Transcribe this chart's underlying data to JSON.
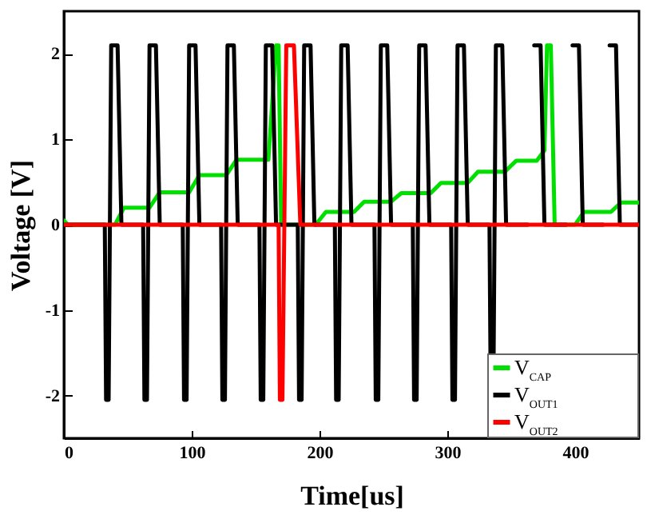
{
  "chart_data": {
    "type": "line",
    "xlabel": "Time[us]",
    "ylabel": "Voltage [V]",
    "xlim": [
      0,
      450
    ],
    "xticks": [
      0,
      100,
      200,
      300,
      400
    ],
    "ylim": [
      -2.5,
      2.5
    ],
    "yticks": [
      -2,
      -1,
      0,
      1,
      2
    ],
    "grid": false,
    "legend": "bottom right",
    "marker": "none",
    "line_style": "solid",
    "series": [
      {
        "name": "V$_{CAP}$",
        "color": "#00e000",
        "x": [
          0,
          3,
          40,
          47,
          67,
          75,
          98,
          106,
          127,
          135,
          160,
          166,
          168,
          170,
          197,
          205,
          227,
          235,
          256,
          264,
          287,
          295,
          316,
          324,
          345,
          354,
          370,
          376,
          378,
          381,
          384,
          400,
          407,
          428,
          436,
          450
        ],
        "values": [
          0.05,
          0,
          0,
          0.2,
          0.2,
          0.38,
          0.38,
          0.58,
          0.58,
          0.76,
          0.76,
          2.1,
          2.1,
          0,
          0,
          0.15,
          0.15,
          0.27,
          0.27,
          0.37,
          0.37,
          0.49,
          0.49,
          0.62,
          0.62,
          0.75,
          0.75,
          0.87,
          2.1,
          2.1,
          0,
          0,
          0.15,
          0.15,
          0.26,
          0.26
        ]
      },
      {
        "name": "V$_{OUT1}$",
        "color": "#000000",
        "x": [
          0,
          32,
          33,
          35,
          37,
          42,
          45,
          62,
          63,
          65,
          67,
          72,
          75,
          93,
          94,
          96,
          98,
          103,
          106,
          123,
          124,
          126,
          128,
          133,
          136,
          153,
          154,
          156,
          158,
          163,
          166,
          183,
          184,
          186,
          188,
          193,
          196,
          212,
          213,
          215,
          217,
          222,
          225,
          243,
          244,
          246,
          248,
          253,
          256,
          273,
          274,
          276,
          278,
          283,
          286,
          303,
          304,
          306,
          308,
          313,
          316,
          333,
          334,
          336,
          338,
          343,
          346,
          363,
          364,
          366,
          368,
          373,
          376,
          393,
          394,
          396,
          398,
          403,
          406,
          422,
          423,
          425,
          427,
          432,
          435,
          450
        ],
        "values": [
          0,
          0,
          -2.05,
          -2.05,
          2.1,
          2.1,
          0,
          0,
          -2.05,
          -2.05,
          2.1,
          2.1,
          0,
          0,
          -2.05,
          -2.05,
          2.1,
          2.1,
          0,
          0,
          -2.05,
          -2.05,
          2.1,
          2.1,
          0,
          0,
          -2.05,
          -2.05,
          2.1,
          2.1,
          0,
          0,
          -2.05,
          -2.05,
          2.1,
          2.1,
          0,
          0,
          -2.05,
          -2.05,
          2.1,
          2.1,
          0,
          0,
          -2.05,
          -2.05,
          2.1,
          2.1,
          0,
          0,
          -2.05,
          -2.05,
          2.1,
          2.1,
          0,
          0,
          -2.05,
          -2.05,
          2.1,
          2.1,
          0,
          0,
          -2.05,
          -2.05,
          2.1,
          2.1,
          0,
          0,
          null,
          null,
          2.1,
          2.1,
          0,
          0,
          null,
          null,
          2.1,
          2.1,
          0,
          0,
          null,
          null,
          2.1,
          2.1,
          0,
          0
        ]
      },
      {
        "name": "V$_{OUT2}$",
        "color": "#ff0000",
        "x": [
          0,
          168,
          169,
          171,
          174,
          180,
          185,
          450
        ],
        "values": [
          0,
          0,
          -2.05,
          -2.05,
          2.1,
          2.1,
          0,
          0
        ]
      }
    ]
  }
}
